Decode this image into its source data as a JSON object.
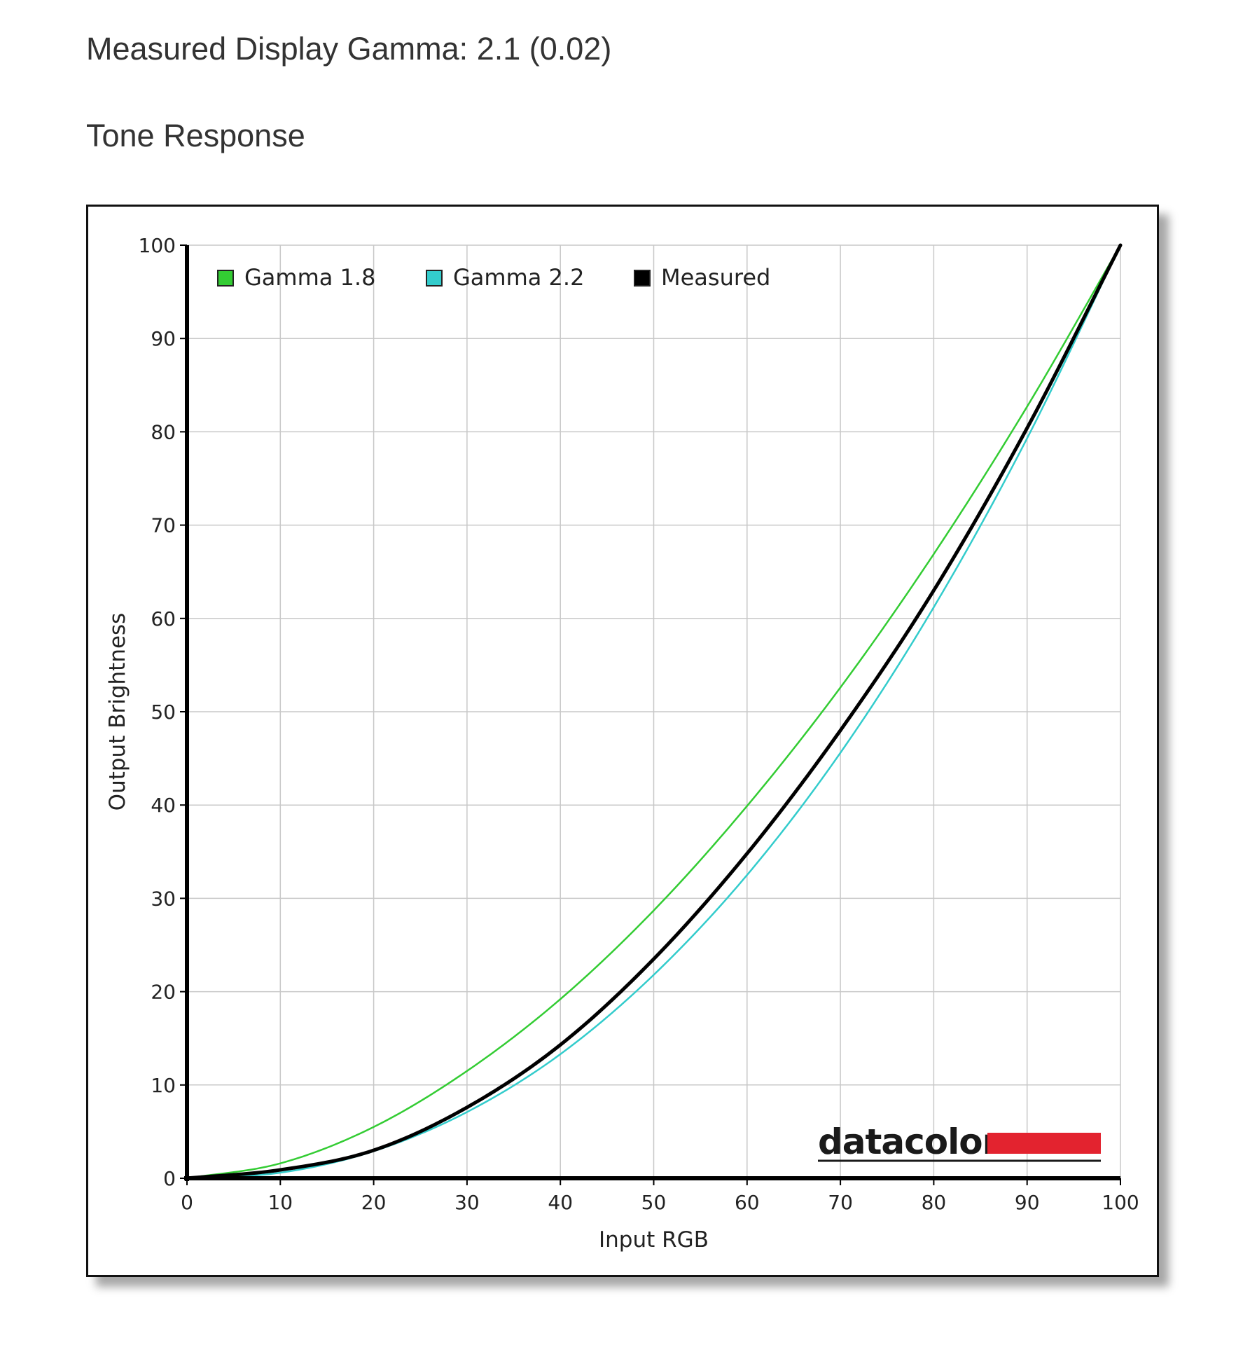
{
  "header": {
    "gamma_heading": "Measured Display Gamma: 2.1 (0.02)",
    "tone_heading": "Tone Response"
  },
  "logo": {
    "text": "datacolor",
    "bar_color": "#e3232f"
  },
  "chart_data": {
    "type": "line",
    "title": "",
    "xlabel": "Input RGB",
    "ylabel": "Output Brightness",
    "xlim": [
      0,
      100
    ],
    "ylim": [
      0,
      100
    ],
    "xticks": [
      0,
      10,
      20,
      30,
      40,
      50,
      60,
      70,
      80,
      90,
      100
    ],
    "yticks": [
      0,
      10,
      20,
      30,
      40,
      50,
      60,
      70,
      80,
      90,
      100
    ],
    "grid": true,
    "legend_position": "top-left",
    "x": [
      0,
      10,
      20,
      30,
      40,
      50,
      60,
      70,
      80,
      90,
      100
    ],
    "series": [
      {
        "name": "Gamma 1.8",
        "color": "#33cc33",
        "values": [
          0,
          1.6,
          5.5,
          11.5,
          19.2,
          28.7,
          39.9,
          52.6,
          66.9,
          82.7,
          100
        ]
      },
      {
        "name": "Gamma 2.2",
        "color": "#33cccc",
        "values": [
          0,
          0.6,
          2.9,
          7.1,
          13.3,
          21.8,
          32.5,
          45.6,
          61.2,
          79.3,
          100
        ]
      },
      {
        "name": "Measured",
        "color": "#000000",
        "values": [
          0,
          0.9,
          3.0,
          7.6,
          14.3,
          23.5,
          34.8,
          48.0,
          63.0,
          80.4,
          100
        ]
      }
    ]
  }
}
